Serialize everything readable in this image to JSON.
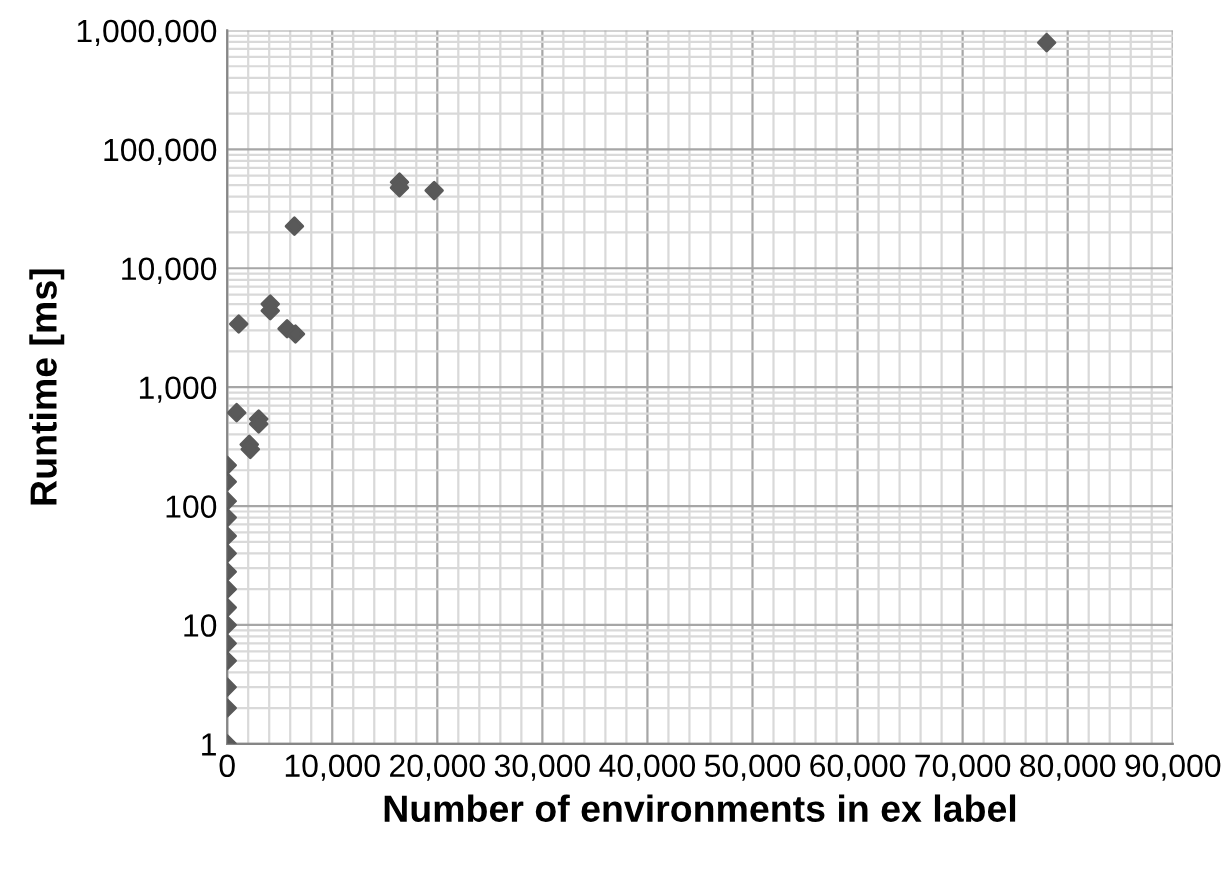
{
  "chart_data": {
    "type": "scatter",
    "xlabel": "Number of environments in ex label",
    "ylabel": "Runtime [ms]",
    "log": "y",
    "grid": true,
    "marker": "diamond",
    "legend": false,
    "xlim": [
      0,
      90000
    ],
    "ylim": [
      1,
      1000000
    ],
    "xticks": [
      0,
      {
        "value": 10000,
        "label": "10,000"
      },
      {
        "value": 20000,
        "label": "20,000"
      },
      {
        "value": 30000,
        "label": "30,000"
      },
      {
        "value": 40000,
        "label": "40,000"
      },
      {
        "value": 50000,
        "label": "50,000"
      },
      {
        "value": 60000,
        "label": "60,000"
      },
      {
        "value": 70000,
        "label": "70,000"
      },
      {
        "value": 80000,
        "label": "80,000"
      },
      {
        "value": 90000,
        "label": "90,000"
      }
    ],
    "yticks": [
      1,
      10,
      100,
      {
        "value": 1000,
        "label": "1,000"
      },
      {
        "value": 10000,
        "label": "10,000"
      },
      {
        "value": 100000,
        "label": "100,000"
      },
      {
        "value": 1000000,
        "label": "1,000,000"
      }
    ],
    "series": [
      {
        "color": "#595959",
        "x": [
          78000,
          16400,
          16400,
          19700,
          6400,
          4100,
          4100,
          1100,
          5700,
          6500,
          900,
          3000,
          3000,
          2100,
          2200,
          0,
          0,
          0,
          0,
          0,
          0,
          0,
          0,
          0,
          0,
          0,
          0,
          0,
          0,
          0
        ],
        "values": [
          790000,
          53000,
          47600,
          45000,
          22600,
          5000,
          4400,
          3400,
          3100,
          2800,
          610,
          540,
          490,
          330,
          300,
          1,
          2,
          3,
          5,
          7,
          10,
          14,
          20,
          28,
          40,
          56,
          80,
          110,
          160,
          220
        ]
      }
    ]
  }
}
